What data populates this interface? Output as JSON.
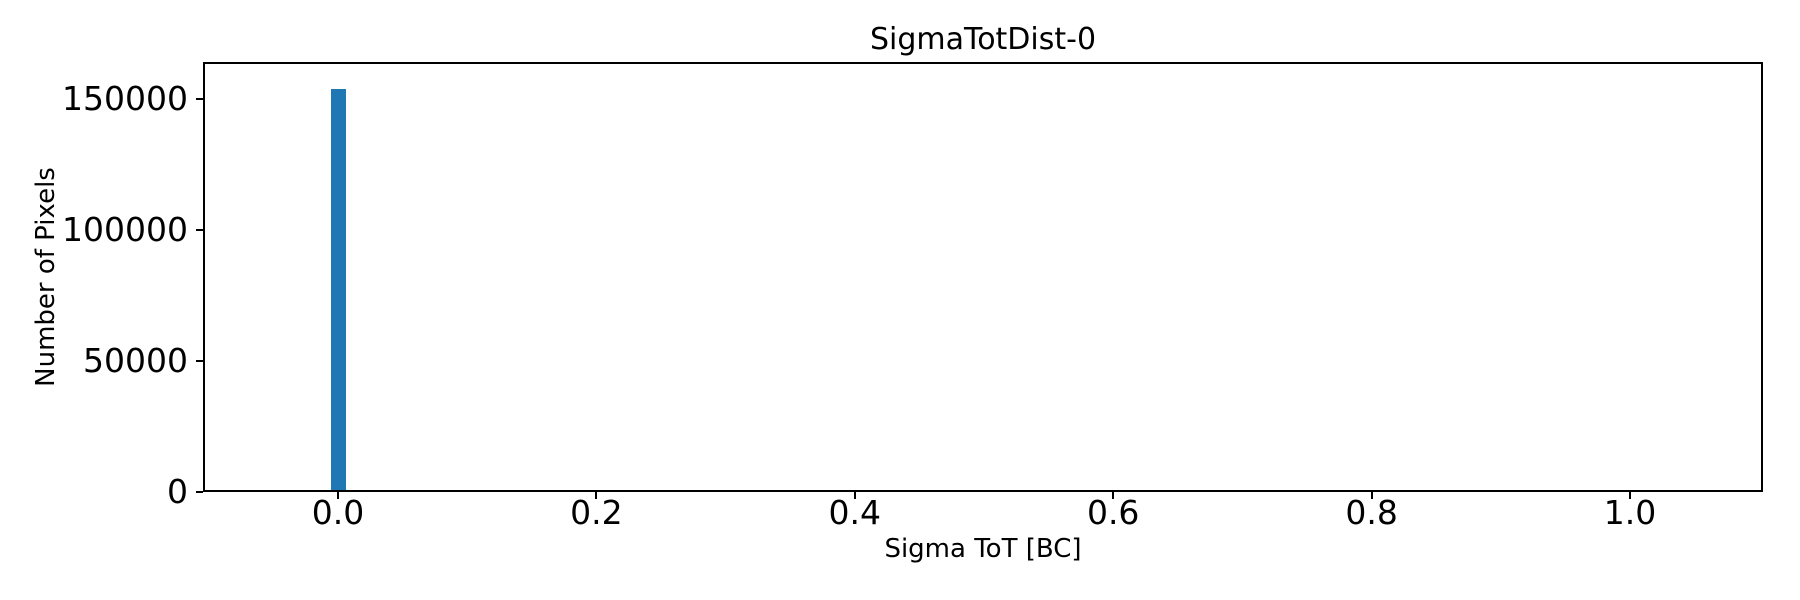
{
  "chart_data": {
    "type": "bar",
    "title": "SigmaTotDist-0",
    "xlabel": "Sigma ToT [BC]",
    "ylabel": "Number of Pixels",
    "bar_color": "#1f77b4",
    "text_color": "#000000",
    "spine_color": "#000000",
    "grid": false,
    "legend": null,
    "xlim": [
      -0.1045,
      1.1029
    ],
    "ylim": [
      0,
      164000
    ],
    "xticks": {
      "values": [
        0.0,
        0.2,
        0.4,
        0.6,
        0.8,
        1.0
      ],
      "labels": [
        "0.0",
        "0.2",
        "0.4",
        "0.6",
        "0.8",
        "1.0"
      ]
    },
    "yticks": {
      "values": [
        0,
        50000,
        100000,
        150000
      ],
      "labels": [
        "0",
        "50000",
        "100000",
        "150000"
      ]
    },
    "bars": [
      {
        "x_center": 0.0,
        "bin_width": 0.0116,
        "value": 153800
      }
    ]
  }
}
